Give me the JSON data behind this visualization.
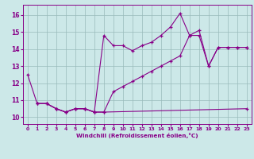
{
  "bg_color": "#cce8e8",
  "line_color": "#880088",
  "grid_color": "#99bbbb",
  "xlabel": "Windchill (Refroidissement éolien,°C)",
  "xlim": [
    -0.5,
    23.5
  ],
  "ylim": [
    9.6,
    16.6
  ],
  "yticks": [
    10,
    11,
    12,
    13,
    14,
    15,
    16
  ],
  "xticks": [
    0,
    1,
    2,
    3,
    4,
    5,
    6,
    7,
    8,
    9,
    10,
    11,
    12,
    13,
    14,
    15,
    16,
    17,
    18,
    19,
    20,
    21,
    22,
    23
  ],
  "l1x": [
    0,
    1,
    2,
    3,
    4,
    5,
    6,
    7,
    8,
    23
  ],
  "l1y": [
    12.5,
    10.8,
    10.8,
    10.5,
    10.3,
    10.5,
    10.5,
    10.3,
    10.3,
    10.5
  ],
  "l2x": [
    1,
    2,
    3,
    4,
    5,
    6,
    7,
    8,
    9,
    10,
    11,
    12,
    13,
    14,
    15,
    16,
    17,
    18,
    19,
    20,
    21,
    22,
    23
  ],
  "l2y": [
    10.8,
    10.8,
    10.5,
    10.3,
    10.5,
    10.5,
    10.3,
    14.8,
    14.2,
    14.2,
    13.9,
    14.2,
    14.4,
    14.8,
    15.3,
    16.1,
    14.8,
    15.1,
    13.0,
    14.1,
    14.1,
    14.1,
    14.1
  ],
  "l3x": [
    1,
    2,
    3,
    4,
    5,
    6,
    7,
    8,
    9,
    10,
    11,
    12,
    13,
    14,
    15,
    16,
    17,
    18,
    19,
    20,
    21,
    22,
    23
  ],
  "l3y": [
    10.8,
    10.8,
    10.5,
    10.3,
    10.5,
    10.5,
    10.3,
    10.3,
    11.5,
    11.8,
    12.1,
    12.4,
    12.7,
    13.0,
    13.3,
    13.6,
    14.8,
    14.8,
    13.0,
    14.1,
    14.1,
    14.1,
    14.1
  ]
}
